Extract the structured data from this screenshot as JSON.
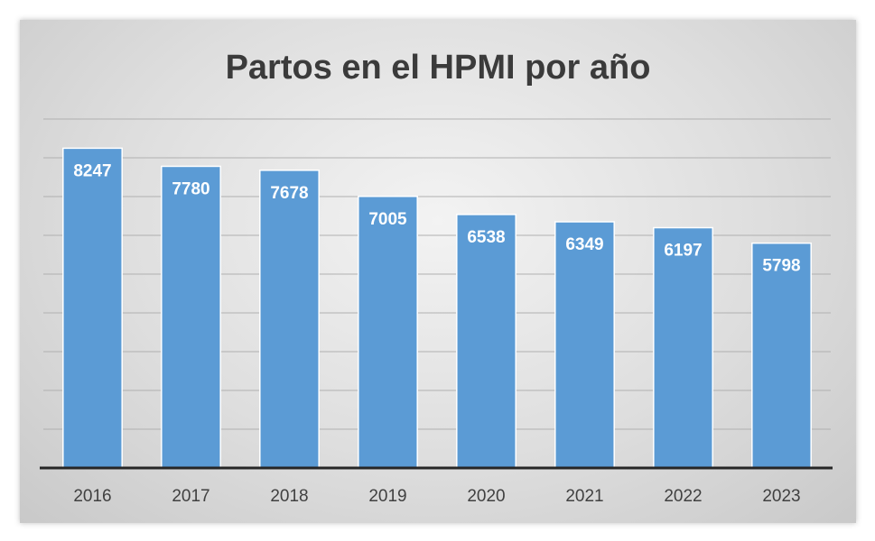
{
  "chart_data": {
    "type": "bar",
    "title": "Partos en el HPMI por año",
    "categories": [
      "2016",
      "2017",
      "2018",
      "2019",
      "2020",
      "2021",
      "2022",
      "2023"
    ],
    "values": [
      8247,
      7780,
      7678,
      7005,
      6538,
      6349,
      6197,
      5798
    ],
    "ylim": [
      0,
      9000
    ],
    "grid": true,
    "legend": "none",
    "colors": {
      "bar": "#5b9bd5",
      "bar_border": "#ffffff",
      "grid": "#b0b0b0",
      "axis": "#262626"
    }
  }
}
